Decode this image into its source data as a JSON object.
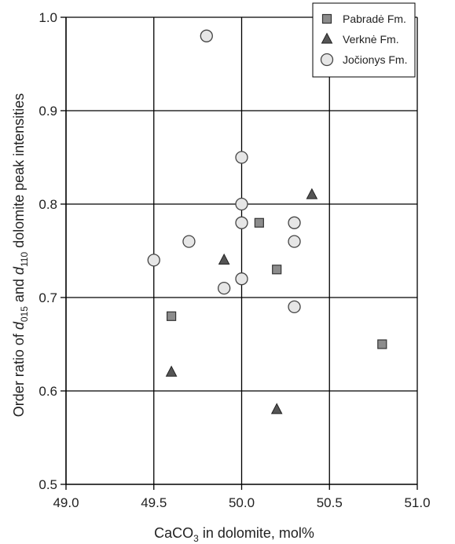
{
  "chart_data": {
    "type": "scatter",
    "xlabel": {
      "main": "CaCO",
      "sub": "3",
      "rest": " in dolomite, mol%"
    },
    "ylabel": {
      "p1": "Order ratio of ",
      "d1": "d",
      "s1": "015",
      "p2": " and ",
      "d2": "d",
      "s2": "110",
      "p3": " dolomite peak  intensities"
    },
    "xlim": [
      49.0,
      51.0
    ],
    "ylim": [
      0.5,
      1.0
    ],
    "x_ticks": [
      "49.0",
      "49.5",
      "50.0",
      "50.5",
      "51.0"
    ],
    "y_ticks": [
      "0.5",
      "0.6",
      "0.7",
      "0.8",
      "0.9",
      "1.0"
    ],
    "grid": true,
    "legend_position": "top-right",
    "series": [
      {
        "name": "Pabradė Fm.",
        "marker": "square",
        "color": "#8c8c8c",
        "points": [
          {
            "x": 49.6,
            "y": 0.68
          },
          {
            "x": 50.1,
            "y": 0.78
          },
          {
            "x": 50.2,
            "y": 0.73
          },
          {
            "x": 50.8,
            "y": 0.65
          }
        ]
      },
      {
        "name": "Verknė Fm.",
        "marker": "triangle",
        "color": "#555555",
        "points": [
          {
            "x": 49.6,
            "y": 0.62
          },
          {
            "x": 49.9,
            "y": 0.74
          },
          {
            "x": 50.2,
            "y": 0.58
          },
          {
            "x": 50.4,
            "y": 0.81
          }
        ]
      },
      {
        "name": "Jočionys Fm.",
        "marker": "circle",
        "color": "#e6e6e6",
        "points": [
          {
            "x": 49.8,
            "y": 0.98
          },
          {
            "x": 50.0,
            "y": 0.85
          },
          {
            "x": 50.0,
            "y": 0.8
          },
          {
            "x": 50.0,
            "y": 0.78
          },
          {
            "x": 50.3,
            "y": 0.78
          },
          {
            "x": 50.3,
            "y": 0.76
          },
          {
            "x": 49.7,
            "y": 0.76
          },
          {
            "x": 49.5,
            "y": 0.74
          },
          {
            "x": 50.0,
            "y": 0.72
          },
          {
            "x": 49.9,
            "y": 0.71
          },
          {
            "x": 50.3,
            "y": 0.69
          }
        ]
      }
    ]
  }
}
